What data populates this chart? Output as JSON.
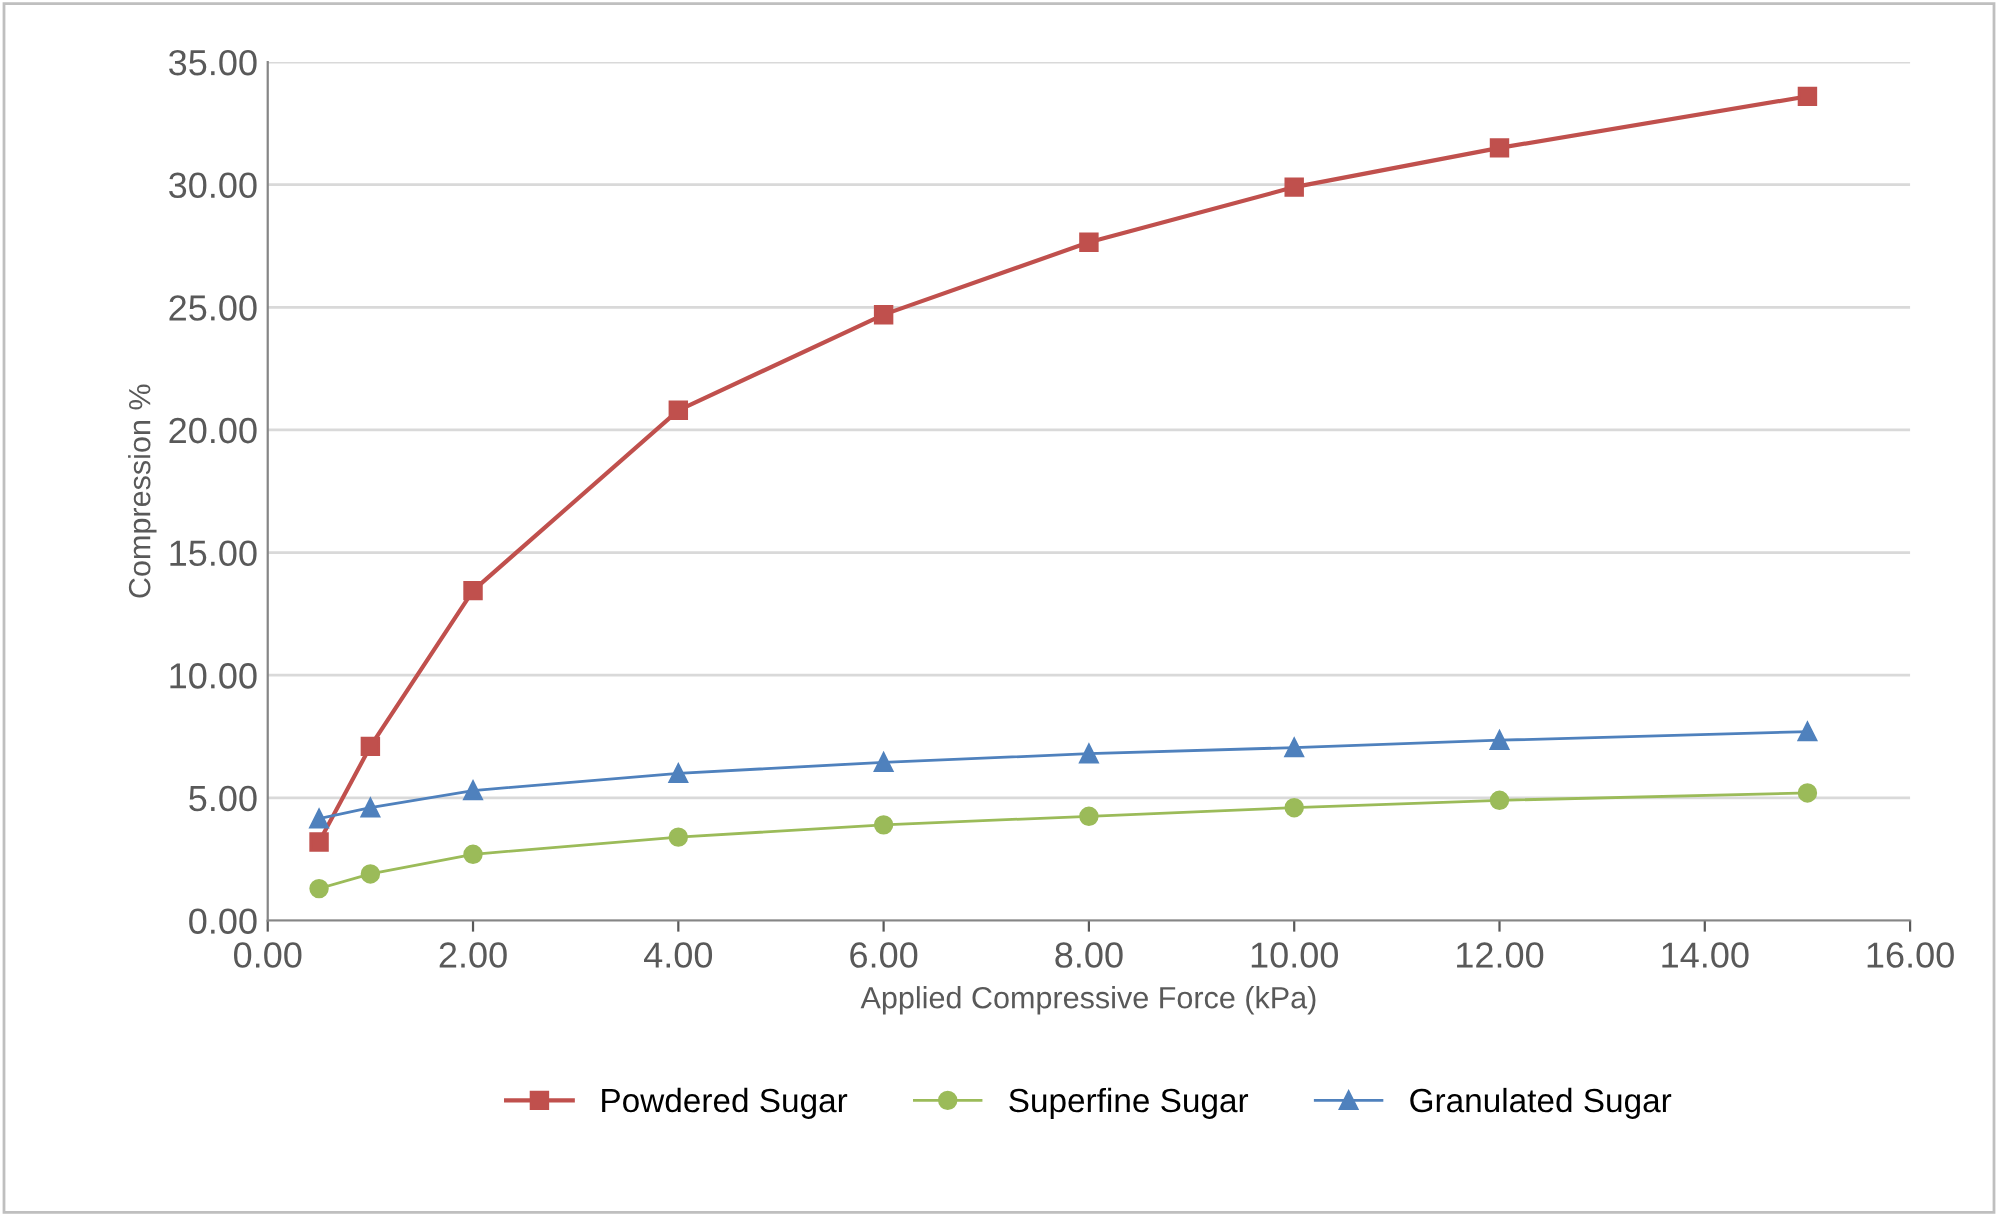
{
  "chart_data": {
    "type": "line",
    "xlabel": "Applied Compressive Force (kPa)",
    "ylabel": "Compression %",
    "x": [
      0.5,
      1,
      2,
      4,
      6,
      8,
      10,
      12,
      15
    ],
    "series": [
      {
        "name": "Powdered Sugar",
        "color": "#c0504d",
        "marker": "square",
        "values": [
          3.2,
          7.1,
          13.45,
          20.8,
          24.7,
          27.65,
          29.9,
          31.5,
          33.6
        ]
      },
      {
        "name": "Superfine Sugar",
        "color": "#9bbb59",
        "marker": "circle",
        "values": [
          1.3,
          1.9,
          2.7,
          3.4,
          3.9,
          4.25,
          4.6,
          4.9,
          5.2
        ]
      },
      {
        "name": "Granulated Sugar",
        "color": "#4f81bd",
        "marker": "triangle",
        "values": [
          4.15,
          4.6,
          5.3,
          6.0,
          6.45,
          6.8,
          7.05,
          7.35,
          7.7
        ]
      }
    ],
    "xlim": [
      0,
      16
    ],
    "xticks": [
      {
        "value": 0,
        "label": "0.00"
      },
      {
        "value": 2,
        "label": "2.00"
      },
      {
        "value": 4,
        "label": "4.00"
      },
      {
        "value": 6,
        "label": "6.00"
      },
      {
        "value": 8,
        "label": "8.00"
      },
      {
        "value": 10,
        "label": "10.00"
      },
      {
        "value": 12,
        "label": "12.00"
      },
      {
        "value": 14,
        "label": "14.00"
      },
      {
        "value": 16,
        "label": "16.00"
      }
    ],
    "ylim": [
      0,
      35
    ],
    "yticks": [
      {
        "value": 0,
        "label": "0.00"
      },
      {
        "value": 5,
        "label": "5.00"
      },
      {
        "value": 10,
        "label": "10.00"
      },
      {
        "value": 15,
        "label": "15.00"
      },
      {
        "value": 20,
        "label": "20.00"
      },
      {
        "value": 25,
        "label": "25.00"
      },
      {
        "value": 30,
        "label": "30.00"
      },
      {
        "value": 35,
        "label": "35.00"
      }
    ],
    "grid": "y",
    "legend": "bottom",
    "line_style": "solid"
  }
}
